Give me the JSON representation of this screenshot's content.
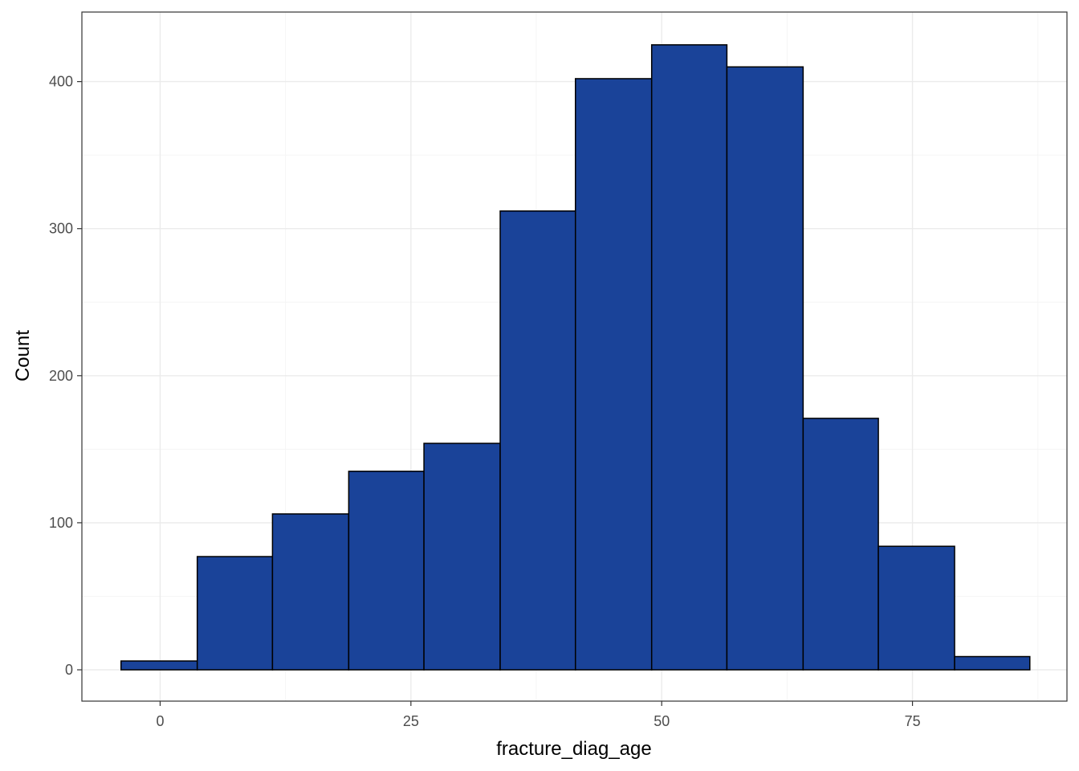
{
  "chart_data": {
    "type": "bar",
    "subtype": "histogram",
    "xlabel": "fracture_diag_age",
    "ylabel": "Count",
    "xlim": [
      -7.8,
      90.4
    ],
    "ylim": [
      -21.3,
      447.3
    ],
    "x_ticks": [
      0,
      25,
      50,
      75
    ],
    "x_tick_labels": [
      "0",
      "25",
      "50",
      "75"
    ],
    "y_ticks": [
      0,
      100,
      200,
      300,
      400
    ],
    "y_tick_labels": [
      "0",
      "100",
      "200",
      "300",
      "400"
    ],
    "bin_edges": [
      -3.9,
      3.7,
      11.2,
      18.8,
      26.3,
      33.9,
      41.4,
      49.0,
      56.5,
      64.1,
      71.6,
      79.2,
      86.7
    ],
    "values": [
      6,
      77,
      106,
      135,
      154,
      312,
      402,
      425,
      410,
      171,
      84,
      9
    ],
    "grid": true,
    "legend": "none",
    "colors": {
      "bar_fill": "#1A4399",
      "bar_outline": "#000000",
      "grid_major": "#EBEBEB",
      "grid_minor": "#F5F5F5",
      "panel_border": "#333333"
    }
  }
}
